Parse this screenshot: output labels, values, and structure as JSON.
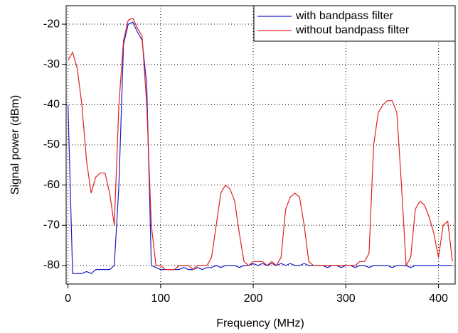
{
  "chart_data": {
    "type": "line",
    "x_label": "Frequency (MHz)",
    "y_label": "Signal power (dBm)",
    "x": [
      0,
      5,
      10,
      15,
      20,
      25,
      30,
      35,
      40,
      45,
      50,
      55,
      60,
      65,
      70,
      75,
      80,
      85,
      90,
      95,
      100,
      105,
      110,
      115,
      120,
      125,
      130,
      135,
      140,
      145,
      150,
      155,
      160,
      165,
      170,
      175,
      180,
      185,
      190,
      195,
      200,
      205,
      210,
      215,
      220,
      225,
      230,
      235,
      240,
      245,
      250,
      255,
      260,
      265,
      270,
      275,
      280,
      285,
      290,
      295,
      300,
      305,
      310,
      315,
      320,
      325,
      330,
      335,
      340,
      345,
      350,
      355,
      360,
      365,
      370,
      375,
      380,
      385,
      390,
      395,
      400,
      405,
      410,
      415
    ],
    "series": [
      {
        "name": "with bandpass filter",
        "color": "#1c1cc8",
        "values": [
          -40,
          -82,
          -82,
          -82,
          -81.5,
          -82,
          -81,
          -81,
          -81,
          -81,
          -80,
          -60,
          -25,
          -20,
          -19.5,
          -22,
          -24,
          -35,
          -80,
          -80.5,
          -81,
          -81,
          -81,
          -81,
          -81,
          -80.5,
          -81,
          -81,
          -80.5,
          -81,
          -80.5,
          -80.5,
          -80,
          -80.5,
          -80,
          -80,
          -80,
          -80.5,
          -80,
          -80,
          -79.5,
          -80,
          -79.5,
          -80,
          -79.5,
          -80,
          -79.5,
          -80,
          -79.5,
          -80,
          -80,
          -79.5,
          -80,
          -80,
          -80,
          -80,
          -80.5,
          -80,
          -80,
          -80.5,
          -80,
          -80,
          -80.5,
          -80,
          -80,
          -80.5,
          -80,
          -80,
          -80,
          -80,
          -80.5,
          -80,
          -80,
          -80,
          -80.5,
          -80,
          -80,
          -80,
          -80,
          -80,
          -80,
          -80,
          -80,
          -80
        ]
      },
      {
        "name": "without bandpass filter",
        "color": "#e02020",
        "values": [
          -29,
          -27,
          -31,
          -40,
          -54,
          -62,
          -58,
          -57,
          -57,
          -62,
          -70,
          -40,
          -24,
          -19,
          -18.5,
          -21,
          -23,
          -40,
          -70,
          -80,
          -80,
          -81,
          -81,
          -81,
          -80,
          -80,
          -80,
          -81,
          -80,
          -80,
          -80,
          -78,
          -70,
          -62,
          -60,
          -61,
          -64,
          -72,
          -79,
          -80,
          -79,
          -79,
          -79,
          -80,
          -79,
          -80,
          -78,
          -66,
          -63,
          -62,
          -63,
          -70,
          -79,
          -80,
          -80,
          -80,
          -80,
          -80,
          -80,
          -80,
          -80,
          -80,
          -80,
          -79,
          -79,
          -77,
          -50,
          -42,
          -40,
          -39,
          -39,
          -42,
          -60,
          -80,
          -78,
          -66,
          -64,
          -65,
          -68,
          -72,
          -78,
          -70,
          -69,
          -79
        ]
      }
    ],
    "xlim": [
      -2,
      418
    ],
    "ylim": [
      -84.6,
      -15.4
    ],
    "xticks": [
      0,
      100,
      200,
      300,
      400
    ],
    "yticks": [
      -80,
      -70,
      -60,
      -50,
      -40,
      -30,
      -20
    ],
    "grid": true,
    "legend": "upper right"
  }
}
